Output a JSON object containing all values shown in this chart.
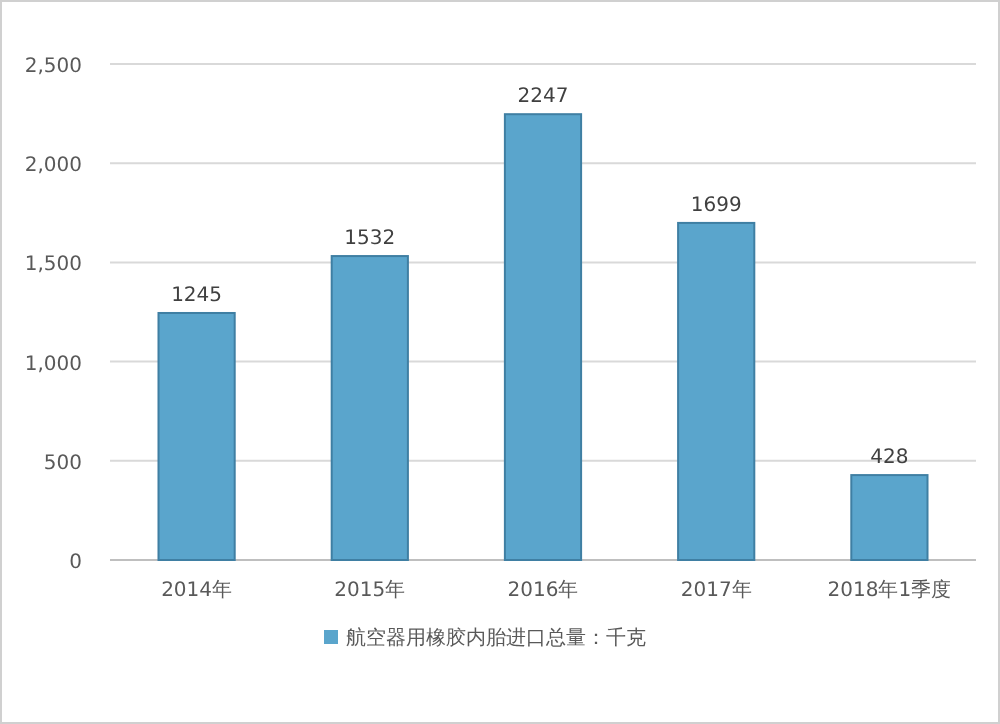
{
  "chart_data": {
    "type": "bar",
    "categories": [
      "2014年",
      "2015年",
      "2016年",
      "2017年",
      "2018年1季度"
    ],
    "series": [
      {
        "name": "航空器用橡胶内胎进口总量：千克",
        "color": "#5aa5cc",
        "values": [
          1245,
          1532,
          2247,
          1699,
          428
        ]
      }
    ],
    "ylim": [
      0,
      2500
    ],
    "yticks": [
      0,
      500,
      {
        "value": 1000,
        "label": "1,000"
      },
      {
        "value": 1500,
        "label": "1,500"
      },
      {
        "value": 2000,
        "label": "2,000"
      },
      {
        "value": 2500,
        "label": "2,500"
      }
    ],
    "grid": "y",
    "legend": "bottom",
    "data_labels": true
  }
}
